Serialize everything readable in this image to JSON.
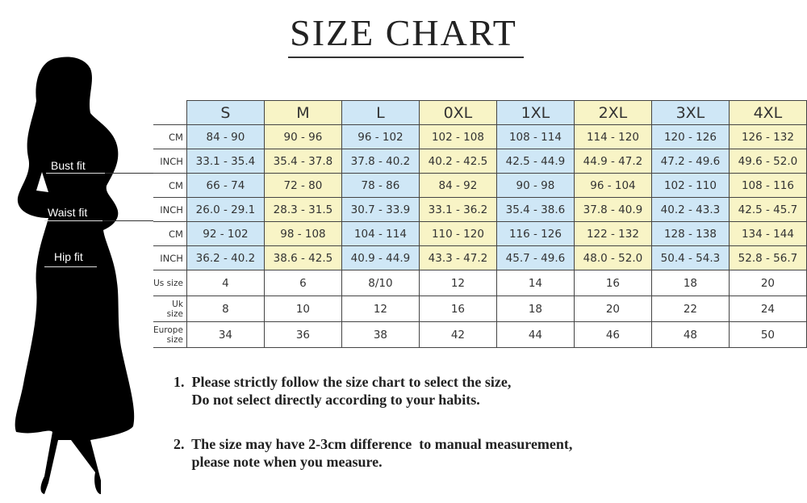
{
  "title": "SIZE CHART",
  "fit_labels": {
    "bust": "Bust fit",
    "waist": "Waist fit",
    "hip": "Hip fit"
  },
  "colors": {
    "blue": "#cfe7f6",
    "yellow": "#f8f4c6"
  },
  "table": {
    "sizes": [
      "S",
      "M",
      "L",
      "0XL",
      "1XL",
      "2XL",
      "3XL",
      "4XL"
    ],
    "rows": [
      {
        "label": "CM",
        "values": [
          "84 - 90",
          "90 - 96",
          "96 - 102",
          "102 - 108",
          "108 - 114",
          "114 - 120",
          "120 - 126",
          "126 - 132"
        ]
      },
      {
        "label": "INCH",
        "values": [
          "33.1 - 35.4",
          "35.4 - 37.8",
          "37.8 - 40.2",
          "40.2 - 42.5",
          "42.5 - 44.9",
          "44.9 - 47.2",
          "47.2 - 49.6",
          "49.6 - 52.0"
        ]
      },
      {
        "label": "CM",
        "values": [
          "66 - 74",
          "72 - 80",
          "78 - 86",
          "84 - 92",
          "90 - 98",
          "96 - 104",
          "102 - 110",
          "108 - 116"
        ]
      },
      {
        "label": "INCH",
        "values": [
          "26.0 - 29.1",
          "28.3 - 31.5",
          "30.7 - 33.9",
          "33.1 - 36.2",
          "35.4 - 38.6",
          "37.8 - 40.9",
          "40.2 - 43.3",
          "42.5 - 45.7"
        ]
      },
      {
        "label": "CM",
        "values": [
          "92 - 102",
          "98 - 108",
          "104 - 114",
          "110 - 120",
          "116 - 126",
          "122 - 132",
          "128 - 138",
          "134 - 144"
        ]
      },
      {
        "label": "INCH",
        "values": [
          "36.2 - 40.2",
          "38.6 - 42.5",
          "40.9 - 44.9",
          "43.3 - 47.2",
          "45.7 - 49.6",
          "48.0 - 52.0",
          "50.4 - 54.3",
          "52.8 - 56.7"
        ]
      },
      {
        "label": "Us size",
        "values": [
          "4",
          "6",
          "8/10",
          "12",
          "14",
          "16",
          "18",
          "20"
        ]
      },
      {
        "label": "Uk size",
        "values": [
          "8",
          "10",
          "12",
          "16",
          "18",
          "20",
          "22",
          "24"
        ]
      },
      {
        "label": "Europe size",
        "values": [
          "34",
          "36",
          "38",
          "42",
          "44",
          "46",
          "48",
          "50"
        ]
      }
    ]
  },
  "notes": [
    {
      "line1": "1.  Please strictly follow the size chart to select the size,",
      "line2": "     Do not select directly according to your habits."
    },
    {
      "line1": "2.  The size may have 2-3cm difference  to manual measurement,",
      "line2": "     please note when you measure."
    }
  ]
}
